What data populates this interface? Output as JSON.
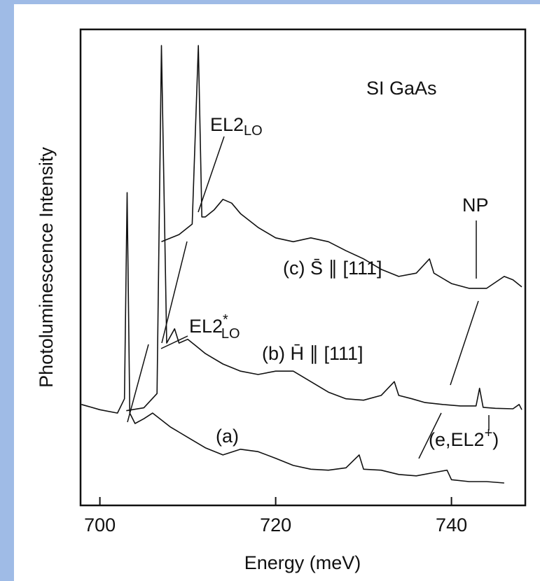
{
  "chart_data": {
    "type": "line",
    "xlabel": "Energy (meV)",
    "ylabel": "Photoluminescence Intensity",
    "xlim": [
      697.8,
      748.4
    ],
    "ylim": [
      0,
      100
    ],
    "xticks": [
      700,
      720,
      740
    ],
    "grid": false,
    "series": [
      {
        "name": "(a)",
        "color": "#111111",
        "x": [
          697.9,
          700,
          702,
          702.8,
          703.1,
          703.4,
          704,
          705,
          706,
          708,
          710,
          712,
          714,
          716,
          718,
          720,
          722,
          724,
          726,
          728,
          729.5,
          730,
          732,
          734,
          736,
          738,
          739.5,
          740,
          742,
          744,
          746
        ],
        "values": [
          21.2,
          20.1,
          19.4,
          22.4,
          65.7,
          19.4,
          17.2,
          18.2,
          19.4,
          16.5,
          14.3,
          12.1,
          10.6,
          11.8,
          11.3,
          9.9,
          8.4,
          7.6,
          7.4,
          7.9,
          10.6,
          7.6,
          7.4,
          6.5,
          6.2,
          6.9,
          7.4,
          5.4,
          5.0,
          5.0,
          4.7
        ]
      },
      {
        "name": "(b) H̄ ∥ [111]",
        "color": "#111111",
        "x": [
          703,
          705,
          706.5,
          707.0,
          707.6,
          708.5,
          709,
          710,
          711,
          712,
          714,
          716,
          718,
          720,
          722,
          724,
          726,
          728,
          730,
          732,
          733.5,
          734,
          735.5,
          737,
          739,
          741,
          742.8,
          743.2,
          743.6,
          745,
          747,
          747.7,
          748
        ],
        "values": [
          19.9,
          20.5,
          23.5,
          96.6,
          34.1,
          37.1,
          34.1,
          34.9,
          33.4,
          31.9,
          29.7,
          28.2,
          27.5,
          28.2,
          28.2,
          26.0,
          23.8,
          22.4,
          22.1,
          23.1,
          26.0,
          23.1,
          22.4,
          21.6,
          21.2,
          20.9,
          20.9,
          24.6,
          20.6,
          20.4,
          20.3,
          21.2,
          20.1
        ]
      },
      {
        "name": "(c) S̄ ∥ [111]",
        "color": "#111111",
        "x": [
          707.0,
          709,
          710.5,
          711.2,
          711.6,
          712,
          713,
          714,
          715,
          716,
          718,
          720,
          722,
          724,
          726,
          728,
          730,
          732,
          734,
          736,
          737.5,
          738,
          740,
          742,
          744,
          746,
          747,
          748
        ],
        "values": [
          55.4,
          56.9,
          59.1,
          96.6,
          60.6,
          60.6,
          62.1,
          64.3,
          63.5,
          61.3,
          58.4,
          56.2,
          55.4,
          56.2,
          55.4,
          53.5,
          51.8,
          49.6,
          48.1,
          48.8,
          51.8,
          48.8,
          46.6,
          45.6,
          45.6,
          48.1,
          47.4,
          45.9
        ]
      }
    ],
    "annotations": [
      {
        "text": "SI GaAs"
      },
      {
        "text": "EL2",
        "sub": "LO"
      },
      {
        "text": "EL2",
        "sup": "*",
        "sub": "LO"
      },
      {
        "text": "NP"
      },
      {
        "text": "(e,EL2",
        "sup": "+",
        "after": ")"
      }
    ]
  }
}
